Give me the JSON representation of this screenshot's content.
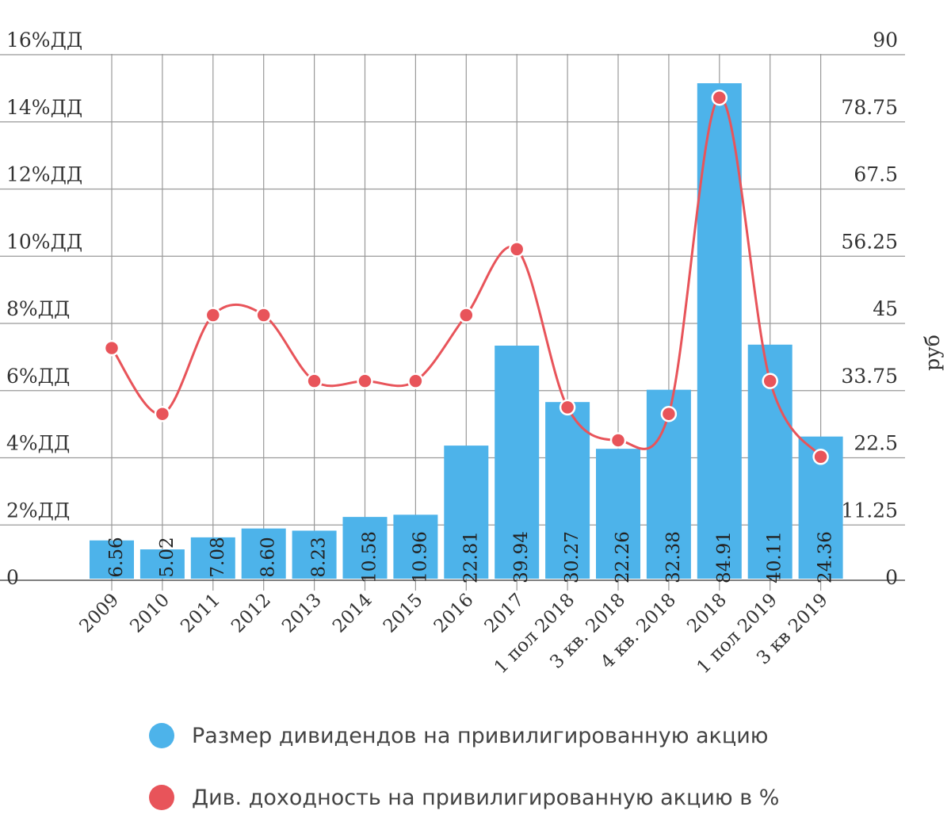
{
  "chart_data": {
    "type": "bar",
    "categories": [
      "2009",
      "2010",
      "2011",
      "2012",
      "2013",
      "2014",
      "2015",
      "2016",
      "2017",
      "1 пол 2018",
      "3 кв. 2018",
      "4 кв. 2018",
      "2018",
      "1 пол 2019",
      "3 кв 2019"
    ],
    "series": [
      {
        "name": "Размер дивидендов на привилигированную акцию",
        "type": "bar",
        "axis": "right",
        "color": "#4db3ea",
        "values": [
          6.56,
          5.02,
          7.08,
          8.6,
          8.23,
          10.58,
          10.96,
          22.81,
          39.94,
          30.27,
          22.26,
          32.38,
          84.91,
          40.11,
          24.36
        ],
        "labels": [
          "6.56",
          "5.02",
          "7.08",
          "8.60",
          "8.23",
          "10.58",
          "10.96",
          "22.81",
          "39.94",
          "30.27",
          "22.26",
          "32.38",
          "84.91",
          "40.11",
          "24.36"
        ]
      },
      {
        "name": "Див. доходность на привилигированную акцию в %",
        "type": "line",
        "axis": "left",
        "color": "#e8545a",
        "values": [
          7.0,
          5.0,
          8.0,
          8.0,
          6.0,
          6.0,
          6.0,
          8.0,
          10.0,
          5.2,
          4.2,
          5.0,
          14.6,
          6.0,
          3.7
        ]
      }
    ],
    "y_left": {
      "ticks": [
        "0",
        "2%ДД",
        "4%ДД",
        "6%ДД",
        "8%ДД",
        "10%ДД",
        "12%ДД",
        "14%ДД",
        "16%ДД"
      ],
      "ylim": [
        0,
        16
      ]
    },
    "y_right": {
      "label": "руб",
      "ticks": [
        "0",
        "11.25",
        "22.5",
        "33.75",
        "45",
        "56.25",
        "67.5",
        "78.75",
        "90"
      ],
      "ylim": [
        0,
        90
      ]
    },
    "grid": true,
    "legend": "bottom"
  },
  "legend": {
    "bar_label": "Размер дивидендов на привилигированную акцию",
    "line_label": "Див. доходность на привилигированную акцию в %"
  }
}
